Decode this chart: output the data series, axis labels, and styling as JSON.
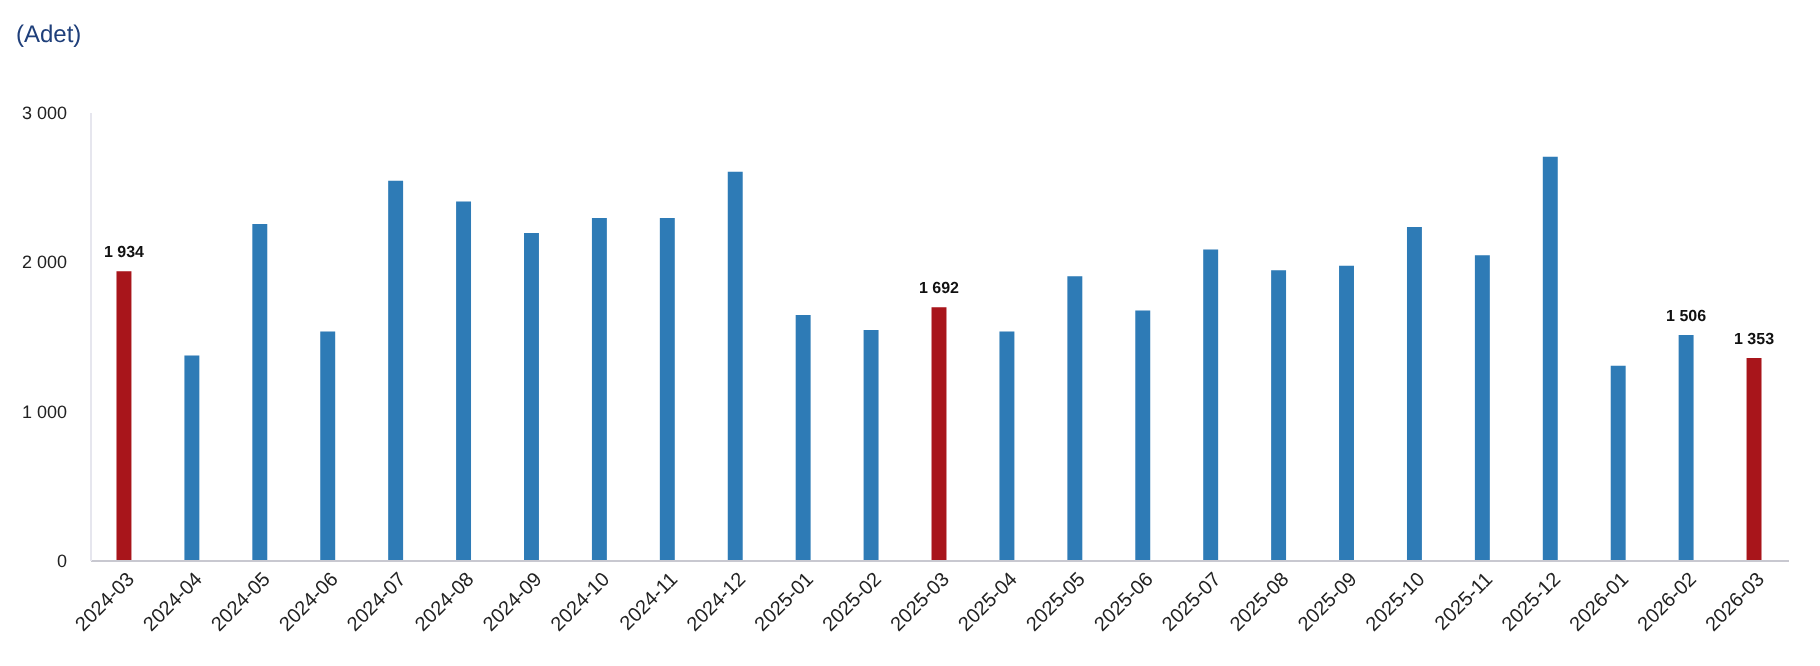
{
  "chart_data": {
    "type": "bar",
    "ylabel": "(Adet)",
    "categories": [
      "2024-03",
      "2024-04",
      "2024-05",
      "2024-06",
      "2024-07",
      "2024-08",
      "2024-09",
      "2024-10",
      "2024-11",
      "2024-12",
      "2025-01",
      "2025-02",
      "2025-03",
      "2025-04",
      "2025-05",
      "2025-06",
      "2025-07",
      "2025-08",
      "2025-09",
      "2025-10",
      "2025-11",
      "2025-12",
      "2026-01",
      "2026-02",
      "2026-03"
    ],
    "values": [
      1934,
      1370,
      2250,
      1530,
      2540,
      2400,
      2190,
      2290,
      2290,
      2600,
      1640,
      1540,
      1692,
      1530,
      1900,
      1670,
      2080,
      1940,
      1970,
      2230,
      2040,
      2700,
      1300,
      1506,
      1353
    ],
    "colors": [
      "#a8151b",
      "#2e7bb6",
      "#2e7bb6",
      "#2e7bb6",
      "#2e7bb6",
      "#2e7bb6",
      "#2e7bb6",
      "#2e7bb6",
      "#2e7bb6",
      "#2e7bb6",
      "#2e7bb6",
      "#2e7bb6",
      "#a8151b",
      "#2e7bb6",
      "#2e7bb6",
      "#2e7bb6",
      "#2e7bb6",
      "#2e7bb6",
      "#2e7bb6",
      "#2e7bb6",
      "#2e7bb6",
      "#2e7bb6",
      "#2e7bb6",
      "#2e7bb6",
      "#a8151b"
    ],
    "value_labels": [
      "1 934",
      null,
      null,
      null,
      null,
      null,
      null,
      null,
      null,
      null,
      null,
      null,
      "1 692",
      null,
      null,
      null,
      null,
      null,
      null,
      null,
      null,
      null,
      null,
      "1 506",
      "1 353"
    ],
    "ylim": [
      0,
      3000
    ],
    "yticks": [
      {
        "value": 0,
        "label": "0"
      },
      {
        "value": 1000,
        "label": "1 000"
      },
      {
        "value": 2000,
        "label": "2 000"
      },
      {
        "value": 3000,
        "label": "3 000"
      }
    ],
    "grid": false
  }
}
